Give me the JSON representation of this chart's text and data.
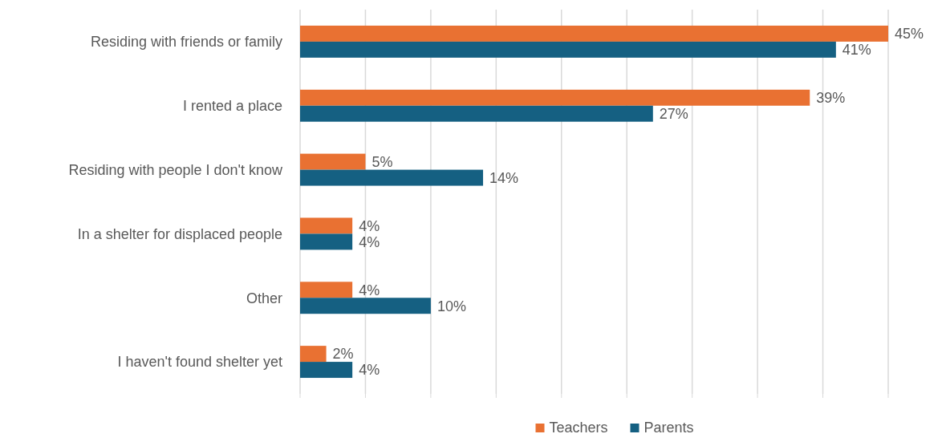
{
  "chart_data": {
    "type": "bar",
    "orientation": "horizontal",
    "categories": [
      "Residing with friends or family",
      "I rented a place",
      "Residing with people I don't know",
      "In a shelter for displaced people",
      "Other",
      "I haven't found shelter yet"
    ],
    "series": [
      {
        "name": "Teachers",
        "color": "#e97132",
        "values": [
          45,
          39,
          5,
          4,
          4,
          2
        ],
        "value_labels": [
          "45%",
          "39%",
          "5%",
          "4%",
          "4%",
          "2%"
        ]
      },
      {
        "name": "Parents",
        "color": "#156082",
        "values": [
          41,
          27,
          14,
          4,
          10,
          4
        ],
        "value_labels": [
          "41%",
          "27%",
          "14%",
          "4%",
          "10%",
          "4%"
        ]
      }
    ],
    "xlim": [
      0,
      45
    ],
    "xticks": [
      {
        "value": 0,
        "label": null
      },
      {
        "value": 5,
        "label": null
      },
      {
        "value": 10,
        "label": null
      },
      {
        "value": 15,
        "label": null
      },
      {
        "value": 20,
        "label": null
      },
      {
        "value": 25,
        "label": null
      },
      {
        "value": 30,
        "label": null
      },
      {
        "value": 35,
        "label": null
      },
      {
        "value": 40,
        "label": null
      },
      {
        "value": 45,
        "label": null
      }
    ],
    "tick_labels": "y",
    "grid": "x",
    "legend": "bottom"
  }
}
